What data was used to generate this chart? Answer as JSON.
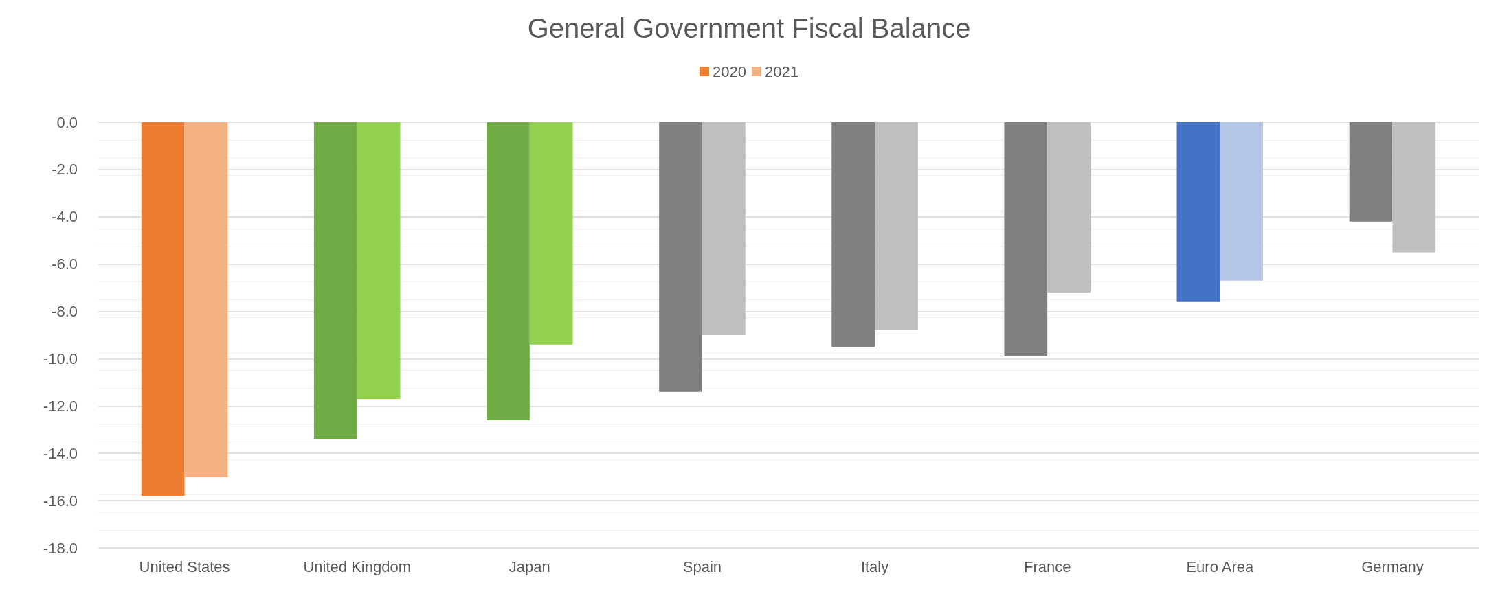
{
  "chart_data": {
    "type": "bar",
    "title": "General Government Fiscal Balance",
    "categories": [
      "United States",
      "United Kingdom",
      "Japan",
      "Spain",
      "Italy",
      "France",
      "Euro Area",
      "Germany"
    ],
    "series": [
      {
        "name": "2020",
        "color": "#ed7d31",
        "colors": [
          "#ed7d31",
          "#70ad47",
          "#70ad47",
          "#7f7f7f",
          "#7f7f7f",
          "#7f7f7f",
          "#4472c4",
          "#7f7f7f"
        ],
        "values": [
          -15.8,
          -13.4,
          -12.6,
          -11.4,
          -9.5,
          -9.9,
          -7.6,
          -4.2
        ]
      },
      {
        "name": "2021",
        "color": "#f4b183",
        "colors": [
          "#f4b183",
          "#92d050",
          "#92d050",
          "#bfbfbf",
          "#bfbfbf",
          "#bfbfbf",
          "#b4c7e7",
          "#bfbfbf"
        ],
        "values": [
          -15.0,
          -11.7,
          -9.4,
          -9.0,
          -8.8,
          -7.2,
          -6.7,
          -5.5
        ]
      }
    ],
    "ylim": [
      -18,
      0
    ],
    "yticks": [
      {
        "value": 0,
        "label": "0.0"
      },
      {
        "value": -2,
        "label": "-2.0"
      },
      {
        "value": -4,
        "label": "-4.0"
      },
      {
        "value": -6,
        "label": "-6.0"
      },
      {
        "value": -8,
        "label": "-8.0"
      },
      {
        "value": -10,
        "label": "-10.0"
      },
      {
        "value": -12,
        "label": "-12.0"
      },
      {
        "value": -14,
        "label": "-14.0"
      },
      {
        "value": -16,
        "label": "-16.0"
      },
      {
        "value": -18,
        "label": "-18.0"
      }
    ],
    "grid": true,
    "legend": "top"
  }
}
